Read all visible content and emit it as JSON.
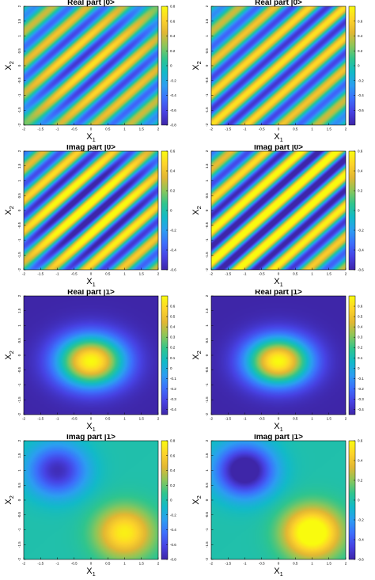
{
  "figure": {
    "colormap": [
      "#3e26a8",
      "#4742e3",
      "#3d6efc",
      "#2c9ef1",
      "#12bac8",
      "#2fc58e",
      "#8cc65a",
      "#e2b733",
      "#fdd32a",
      "#f9fb0e"
    ]
  },
  "chart_data": [
    {
      "type": "heatmap",
      "field": "stripes",
      "title": "Real part |0>",
      "xlabel": "X",
      "xlabel_sub": "1",
      "ylabel": "X",
      "ylabel_sub": "2",
      "xlim": [
        -2,
        2
      ],
      "ylim": [
        -2,
        2
      ],
      "xticks": [
        "-2",
        "-1.5",
        "-1",
        "-0.5",
        "0",
        "0.5",
        "1",
        "1.5",
        "2"
      ],
      "yticks": [
        "2",
        "1.5",
        "1",
        "0.5",
        "0",
        "-0.5",
        "-1",
        "-1.5",
        "-2"
      ],
      "clim": [
        -0.8,
        0.8
      ],
      "colorbar_ticks": [
        "0.8",
        "0.6",
        "0.4",
        "0.2",
        "0",
        "-0.2",
        "-0.4",
        "-0.6",
        "-0.8"
      ],
      "params": {
        "phase": 0.0,
        "envelope": 0.18
      }
    },
    {
      "type": "heatmap",
      "field": "stripes",
      "title": "Real part |0>",
      "xlabel": "X",
      "xlabel_sub": "1",
      "ylabel": "X",
      "ylabel_sub": "2",
      "xlim": [
        -2,
        2
      ],
      "ylim": [
        -2,
        2
      ],
      "xticks": [
        "-2",
        "-1.5",
        "-1",
        "-0.5",
        "0",
        "0.5",
        "1",
        "1.5",
        "2"
      ],
      "yticks": [
        "2",
        "1.5",
        "1",
        "0.5",
        "0",
        "-0.5",
        "-1",
        "-1.5",
        "-2"
      ],
      "clim": [
        -0.8,
        0.8
      ],
      "colorbar_ticks": [
        "0.6",
        "0.4",
        "0.2",
        "0",
        "-0.2",
        "-0.4",
        "-0.6"
      ],
      "params": {
        "phase": 0.0,
        "envelope": 0.0
      }
    },
    {
      "type": "heatmap",
      "field": "stripes",
      "title": "Imag part |0>",
      "xlabel": "X",
      "xlabel_sub": "1",
      "ylabel": "X",
      "ylabel_sub": "2",
      "xlim": [
        -2,
        2
      ],
      "ylim": [
        -2,
        2
      ],
      "xticks": [
        "-2",
        "-1.5",
        "-1",
        "-0.5",
        "0",
        "0.5",
        "1",
        "1.5",
        "2"
      ],
      "yticks": [
        "2",
        "1.5",
        "1",
        "0.5",
        "0",
        "-0.5",
        "-1",
        "-1.5",
        "-2"
      ],
      "clim": [
        -0.6,
        0.6
      ],
      "colorbar_ticks": [
        "0.6",
        "0.4",
        "0.2",
        "0",
        "-0.2",
        "-0.4",
        "-0.6"
      ],
      "params": {
        "phase": 1.5708,
        "envelope": 0.15
      }
    },
    {
      "type": "heatmap",
      "field": "stripes",
      "title": "Imag part |0>",
      "xlabel": "X",
      "xlabel_sub": "1",
      "ylabel": "X",
      "ylabel_sub": "2",
      "xlim": [
        -2,
        2
      ],
      "ylim": [
        -2,
        2
      ],
      "xticks": [
        "-2",
        "-1.5",
        "-1",
        "-0.5",
        "0",
        "0.5",
        "1",
        "1.5",
        "2"
      ],
      "yticks": [
        "2",
        "1.5",
        "1",
        "0.5",
        "0",
        "-0.5",
        "-1",
        "-1.5",
        "-2"
      ],
      "clim": [
        -0.6,
        0.6
      ],
      "colorbar_ticks": [
        "0.6",
        "0.4",
        "0.2",
        "0",
        "-0.2",
        "-0.4",
        "-0.6"
      ],
      "params": {
        "phase": 1.5708,
        "envelope": 0.0
      }
    },
    {
      "type": "heatmap",
      "field": "gaussian",
      "title": "Real part |1>",
      "xlabel": "X",
      "xlabel_sub": "1",
      "ylabel": "X",
      "ylabel_sub": "2",
      "xlim": [
        -2,
        2
      ],
      "ylim": [
        -2,
        2
      ],
      "xticks": [
        "-2",
        "-1.5",
        "-1",
        "-0.5",
        "0",
        "0.5",
        "1",
        "1.5",
        "2"
      ],
      "yticks": [
        "2",
        "1.5",
        "1",
        "0.5",
        "0",
        "-0.5",
        "-1",
        "-1.5",
        "-2"
      ],
      "clim": [
        -0.45,
        0.7
      ],
      "colorbar_ticks": [
        "0.6",
        "0.5",
        "0.4",
        "0.3",
        "0.2",
        "0.1",
        "0",
        "-0.1",
        "-0.2",
        "-0.3",
        "-0.4"
      ],
      "params": {
        "cx": 0.0,
        "cy": -0.2,
        "sx": 1.0,
        "sy": 0.85
      }
    },
    {
      "type": "heatmap",
      "field": "gaussian",
      "title": "Real part |1>",
      "xlabel": "X",
      "xlabel_sub": "1",
      "ylabel": "X",
      "ylabel_sub": "2",
      "xlim": [
        -2,
        2
      ],
      "ylim": [
        -2,
        2
      ],
      "xticks": [
        "-2",
        "-1.5",
        "-1",
        "-0.5",
        "0",
        "0.5",
        "1",
        "1.5",
        "2"
      ],
      "yticks": [
        "2",
        "1.5",
        "1",
        "0.5",
        "0",
        "-0.5",
        "-1",
        "-1.5",
        "-2"
      ],
      "clim": [
        -0.45,
        0.7
      ],
      "colorbar_ticks": [
        "0.6",
        "0.5",
        "0.4",
        "0.3",
        "0.2",
        "0.1",
        "0",
        "-0.1",
        "-0.2",
        "-0.3",
        "-0.4"
      ],
      "params": {
        "cx": 0.0,
        "cy": -0.2,
        "sx": 0.95,
        "sy": 0.8
      }
    },
    {
      "type": "heatmap",
      "field": "dipole",
      "title": "Imag part |1>",
      "xlabel": "X",
      "xlabel_sub": "1",
      "ylabel": "X",
      "ylabel_sub": "2",
      "xlim": [
        -2,
        2
      ],
      "ylim": [
        -2,
        2
      ],
      "xticks": [
        "-2",
        "-1.5",
        "-1",
        "-0.5",
        "0",
        "0.5",
        "1",
        "1.5",
        "2"
      ],
      "yticks": [
        "2",
        "1.5",
        "1",
        "0.5",
        "0",
        "-0.5",
        "-1",
        "-1.5",
        "-2"
      ],
      "clim": [
        -0.8,
        0.8
      ],
      "colorbar_ticks": [
        "0.8",
        "0.6",
        "0.4",
        "0.2",
        "0",
        "-0.2",
        "-0.4",
        "-0.6",
        "-0.8"
      ],
      "params": {
        "ax": -1.0,
        "ay": 1.0,
        "bx": 1.0,
        "by": -1.1,
        "s": 0.85
      }
    },
    {
      "type": "heatmap",
      "field": "dipole",
      "title": "Imag part |1>",
      "xlabel": "X",
      "xlabel_sub": "1",
      "ylabel": "X",
      "ylabel_sub": "2",
      "xlim": [
        -2,
        2
      ],
      "ylim": [
        -2,
        2
      ],
      "xticks": [
        "-2",
        "-1.5",
        "-1",
        "-0.5",
        "0",
        "0.5",
        "1",
        "1.5",
        "2"
      ],
      "yticks": [
        "2",
        "1.5",
        "1",
        "0.5",
        "0",
        "-0.5",
        "-1",
        "-1.5",
        "-2"
      ],
      "clim": [
        -0.6,
        0.6
      ],
      "colorbar_ticks": [
        "0.6",
        "0.4",
        "0.2",
        "0",
        "-0.2",
        "-0.4",
        "-0.6"
      ],
      "params": {
        "ax": -1.0,
        "ay": 1.0,
        "bx": 1.0,
        "by": -1.1,
        "s": 0.85
      }
    }
  ]
}
